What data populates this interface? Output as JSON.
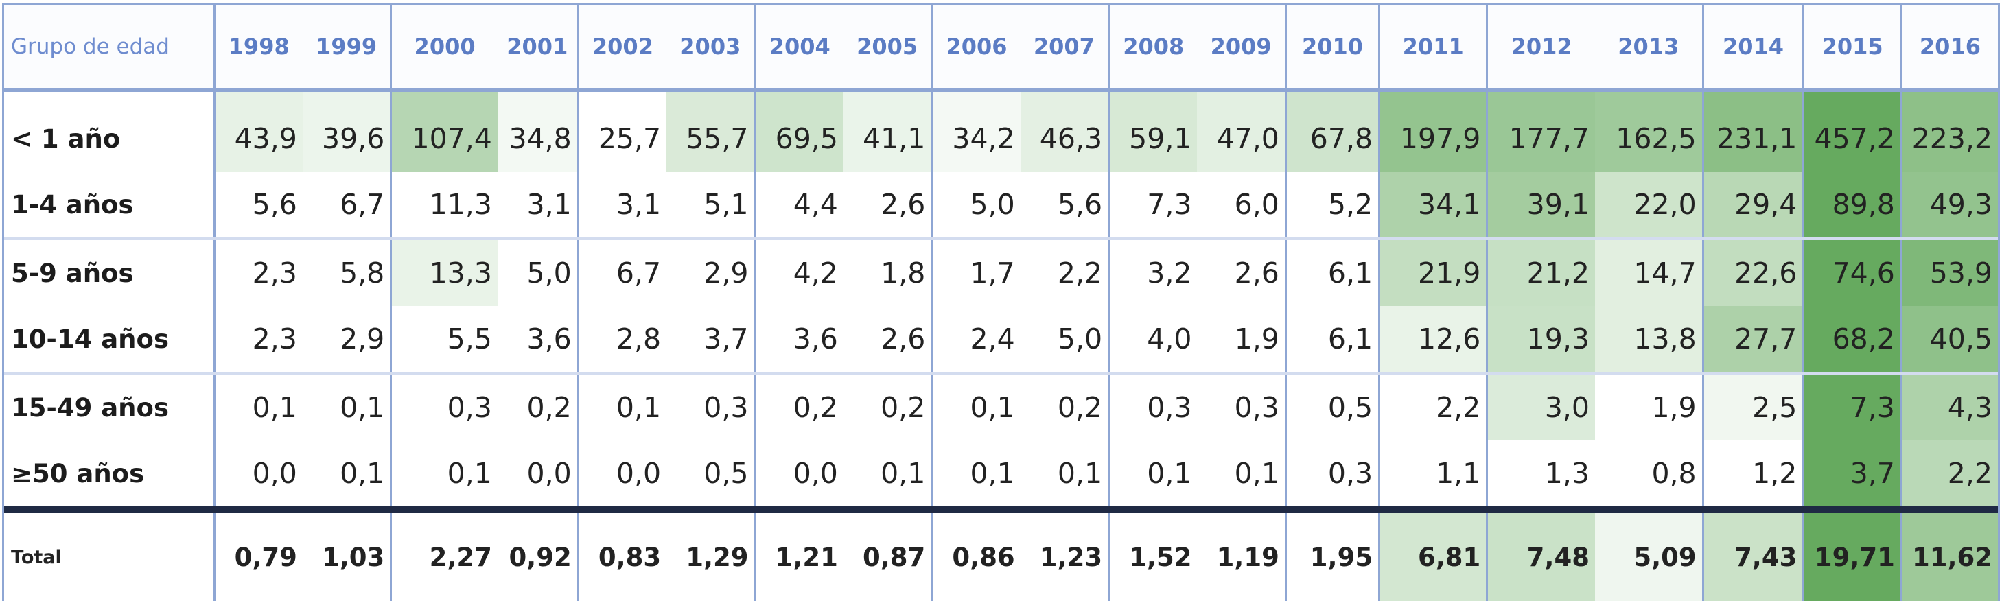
{
  "table": {
    "header_label": "Grupo de edad",
    "years": [
      "1998",
      "1999",
      "2000",
      "2001",
      "2002",
      "2003",
      "2004",
      "2005",
      "2006",
      "2007",
      "2008",
      "2009",
      "2010",
      "2011",
      "2012",
      "2013",
      "2014",
      "2015",
      "2016"
    ],
    "rows": [
      {
        "label": "< 1 año",
        "values": [
          "43,9",
          "39,6",
          "107,4",
          "34,8",
          "25,7",
          "55,7",
          "69,5",
          "41,1",
          "34,2",
          "46,3",
          "59,1",
          "47,0",
          "67,8",
          "197,9",
          "177,7",
          "162,5",
          "231,1",
          "457,2",
          "223,2"
        ]
      },
      {
        "label": "1-4 años",
        "values": [
          "5,6",
          "6,7",
          "11,3",
          "3,1",
          "3,1",
          "5,1",
          "4,4",
          "2,6",
          "5,0",
          "5,6",
          "7,3",
          "6,0",
          "5,2",
          "34,1",
          "39,1",
          "22,0",
          "29,4",
          "89,8",
          "49,3"
        ]
      },
      {
        "label": "5-9 años",
        "values": [
          "2,3",
          "5,8",
          "13,3",
          "5,0",
          "6,7",
          "2,9",
          "4,2",
          "1,8",
          "1,7",
          "2,2",
          "3,2",
          "2,6",
          "6,1",
          "21,9",
          "21,2",
          "14,7",
          "22,6",
          "74,6",
          "53,9"
        ]
      },
      {
        "label": "10-14 años",
        "values": [
          "2,3",
          "2,9",
          "5,5",
          "3,6",
          "2,8",
          "3,7",
          "3,6",
          "2,6",
          "2,4",
          "5,0",
          "4,0",
          "1,9",
          "6,1",
          "12,6",
          "19,3",
          "13,8",
          "27,7",
          "68,2",
          "40,5"
        ]
      },
      {
        "label": "15-49 años",
        "values": [
          "0,1",
          "0,1",
          "0,3",
          "0,2",
          "0,1",
          "0,3",
          "0,2",
          "0,2",
          "0,1",
          "0,2",
          "0,3",
          "0,3",
          "0,5",
          "2,2",
          "3,0",
          "1,9",
          "2,5",
          "7,3",
          "4,3"
        ]
      },
      {
        "label": "≥50 años",
        "values": [
          "0,0",
          "0,1",
          "0,1",
          "0,0",
          "0,0",
          "0,5",
          "0,0",
          "0,1",
          "0,1",
          "0,1",
          "0,1",
          "0,1",
          "0,3",
          "1,1",
          "1,3",
          "0,8",
          "1,2",
          "3,7",
          "2,2"
        ]
      }
    ],
    "total": {
      "label": "Total",
      "values": [
        "0,79",
        "1,03",
        "2,27",
        "0,92",
        "0,83",
        "1,29",
        "1,21",
        "0,87",
        "0,86",
        "1,23",
        "1,52",
        "1,19",
        "1,95",
        "6,81",
        "7,48",
        "5,09",
        "7,43",
        "19,71",
        "11,62"
      ]
    }
  }
}
